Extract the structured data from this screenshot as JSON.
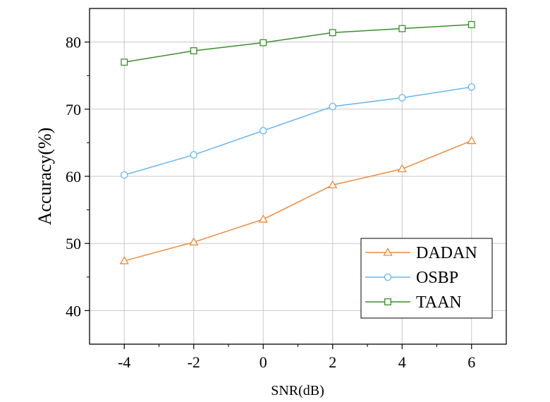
{
  "chart_data": {
    "type": "line",
    "title": "",
    "xlabel": "SNR(dB)",
    "ylabel": "Accuracy(%)",
    "x": [
      -4,
      -2,
      0,
      2,
      4,
      6
    ],
    "xlim": [
      -5,
      7
    ],
    "ylim": [
      35,
      85
    ],
    "xticks": [
      -4,
      -2,
      0,
      2,
      4,
      6
    ],
    "xtick_labels": [
      "-4",
      "-2",
      "0",
      "2",
      "4",
      "6"
    ],
    "yticks": [
      40,
      50,
      60,
      70,
      80
    ],
    "ytick_labels": [
      "40",
      "50",
      "60",
      "70",
      "80"
    ],
    "grid": true,
    "legend_position": "bottom-right",
    "series": [
      {
        "name": "DADAN",
        "color": "#ee8a3c",
        "marker": "triangle",
        "values": [
          47.4,
          50.2,
          53.6,
          58.7,
          61.1,
          65.3
        ]
      },
      {
        "name": "OSBP",
        "color": "#67b7ee",
        "marker": "circle",
        "values": [
          60.2,
          63.2,
          66.8,
          70.4,
          71.7,
          73.3
        ]
      },
      {
        "name": "TAAN",
        "color": "#3a8d2c",
        "marker": "square",
        "values": [
          77.0,
          78.7,
          79.9,
          81.4,
          82.0,
          82.6
        ]
      }
    ]
  }
}
